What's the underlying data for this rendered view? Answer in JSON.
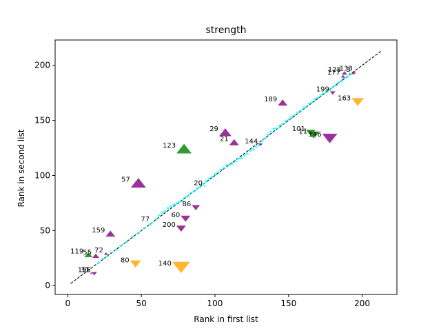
{
  "chart_data": {
    "type": "scatter",
    "title": "strength",
    "xlabel": "Rank in first list",
    "ylabel": "Rank in second list",
    "xlim": [
      -8.6,
      223.6
    ],
    "ylim": [
      -8.0,
      223.0
    ],
    "xticks": [
      0,
      50,
      100,
      150,
      200
    ],
    "yticks": [
      0,
      50,
      100,
      150,
      200
    ],
    "grid": false,
    "reference_line": {
      "from": [
        2,
        2
      ],
      "to": [
        213,
        213
      ],
      "style": "dashed",
      "color": "#000000"
    },
    "colors": {
      "cyan": "#00ffff",
      "purple": "#800080",
      "green": "#008000",
      "orange": "#ffa500"
    },
    "markers": [
      {
        "label": "133",
        "x": 195,
        "y": 194,
        "shape": "triangle-up",
        "color": "purple",
        "size": 2
      },
      {
        "label": "3",
        "x": 194,
        "y": 193,
        "shape": "triangle-up",
        "color": "purple",
        "size": 3
      },
      {
        "label": "128",
        "x": 188,
        "y": 193,
        "shape": "triangle-up",
        "color": "purple",
        "size": 4
      },
      {
        "label": "177",
        "x": 187,
        "y": 190,
        "shape": "triangle-up",
        "color": "purple",
        "size": 3
      },
      {
        "label": "199",
        "x": 180,
        "y": 175,
        "shape": "triangle-down",
        "color": "purple",
        "size": 4
      },
      {
        "label": "163",
        "x": 197,
        "y": 167,
        "shape": "triangle-down",
        "color": "orange",
        "size": 9
      },
      {
        "label": "189",
        "x": 146,
        "y": 166,
        "shape": "triangle-up",
        "color": "purple",
        "size": 7
      },
      {
        "label": "101",
        "x": 165,
        "y": 139,
        "shape": "triangle-down",
        "color": "green",
        "size": 7
      },
      {
        "label": "11",
        "x": 167,
        "y": 137,
        "shape": "triangle-down",
        "color": "green",
        "size": 8
      },
      {
        "label": "146",
        "x": 178,
        "y": 134,
        "shape": "triangle-down",
        "color": "purple",
        "size": 11
      },
      {
        "label": "29",
        "x": 107,
        "y": 139,
        "shape": "triangle-up",
        "color": "purple",
        "size": 9
      },
      {
        "label": "21",
        "x": 113,
        "y": 130,
        "shape": "triangle-up",
        "color": "purple",
        "size": 7
      },
      {
        "label": "144",
        "x": 131,
        "y": 128,
        "shape": "triangle-down",
        "color": "purple",
        "size": 3
      },
      {
        "label": "123",
        "x": 79,
        "y": 124,
        "shape": "triangle-up",
        "color": "green",
        "size": 11
      },
      {
        "label": "57",
        "x": 48,
        "y": 93,
        "shape": "triangle-up",
        "color": "purple",
        "size": 11
      },
      {
        "label": "20",
        "x": 93,
        "y": 90,
        "shape": "triangle-down",
        "color": "cyan",
        "size": 2
      },
      {
        "label": "86",
        "x": 87,
        "y": 71,
        "shape": "triangle-down",
        "color": "purple",
        "size": 6
      },
      {
        "label": "60",
        "x": 80,
        "y": 61,
        "shape": "triangle-down",
        "color": "purple",
        "size": 7
      },
      {
        "label": "77",
        "x": 57,
        "y": 57,
        "shape": "triangle-up",
        "color": "cyan",
        "size": 2
      },
      {
        "label": "200",
        "x": 77,
        "y": 52,
        "shape": "triangle-down",
        "color": "purple",
        "size": 7
      },
      {
        "label": "159",
        "x": 29,
        "y": 47,
        "shape": "triangle-up",
        "color": "purple",
        "size": 7
      },
      {
        "label": "119",
        "x": 14,
        "y": 28,
        "shape": "triangle-up",
        "color": "green",
        "size": 6
      },
      {
        "label": "55",
        "x": 19,
        "y": 27,
        "shape": "triangle-up",
        "color": "purple",
        "size": 5
      },
      {
        "label": "72",
        "x": 26,
        "y": 29,
        "shape": "triangle-up",
        "color": "purple",
        "size": 3
      },
      {
        "label": "80",
        "x": 46,
        "y": 20,
        "shape": "triangle-down",
        "color": "orange",
        "size": 8
      },
      {
        "label": "140",
        "x": 77,
        "y": 17,
        "shape": "triangle-down",
        "color": "orange",
        "size": 13
      },
      {
        "label": "31",
        "x": 16,
        "y": 11,
        "shape": "triangle-down",
        "color": "purple",
        "size": 2
      },
      {
        "label": "195",
        "x": 18,
        "y": 11,
        "shape": "triangle-down",
        "color": "purple",
        "size": 4
      }
    ],
    "cyan_points": [
      [
        21,
        21
      ],
      [
        24,
        24
      ],
      [
        27,
        27
      ],
      [
        30,
        30
      ],
      [
        33,
        33
      ],
      [
        36,
        36
      ],
      [
        40,
        40
      ],
      [
        44,
        44
      ],
      [
        48,
        48
      ],
      [
        52,
        52
      ],
      [
        56,
        56
      ],
      [
        60,
        60
      ],
      [
        62,
        64
      ],
      [
        64,
        66
      ],
      [
        66,
        68
      ],
      [
        68,
        70
      ],
      [
        70,
        72
      ],
      [
        72,
        73
      ],
      [
        74,
        75
      ],
      [
        76,
        76
      ],
      [
        78,
        77
      ],
      [
        80,
        80
      ],
      [
        82,
        82
      ],
      [
        84,
        84
      ],
      [
        86,
        86
      ],
      [
        88,
        88
      ],
      [
        90,
        90
      ],
      [
        92,
        92
      ],
      [
        94,
        95
      ],
      [
        96,
        97
      ],
      [
        98,
        99
      ],
      [
        100,
        101
      ],
      [
        102,
        103
      ],
      [
        104,
        105
      ],
      [
        106,
        107
      ],
      [
        108,
        109
      ],
      [
        110,
        110
      ],
      [
        112,
        111
      ],
      [
        114,
        113
      ],
      [
        116,
        115
      ],
      [
        118,
        116
      ],
      [
        120,
        118
      ],
      [
        122,
        120
      ],
      [
        124,
        122
      ],
      [
        126,
        124
      ],
      [
        128,
        126
      ],
      [
        130,
        128
      ],
      [
        132,
        131
      ],
      [
        134,
        134
      ],
      [
        136,
        137
      ],
      [
        138,
        140
      ],
      [
        140,
        142
      ],
      [
        142,
        143
      ],
      [
        144,
        145
      ],
      [
        146,
        147
      ],
      [
        148,
        149
      ],
      [
        150,
        151
      ],
      [
        152,
        153
      ],
      [
        154,
        155
      ],
      [
        156,
        157
      ],
      [
        158,
        159
      ],
      [
        160,
        161
      ],
      [
        162,
        163
      ],
      [
        164,
        165
      ],
      [
        166,
        167
      ],
      [
        168,
        169
      ],
      [
        170,
        171
      ],
      [
        172,
        173
      ],
      [
        174,
        175
      ],
      [
        176,
        176
      ],
      [
        178,
        178
      ],
      [
        180,
        180
      ],
      [
        182,
        182
      ],
      [
        184,
        184
      ],
      [
        186,
        186
      ],
      [
        188,
        188
      ],
      [
        190,
        190
      ],
      [
        192,
        192
      ]
    ]
  }
}
